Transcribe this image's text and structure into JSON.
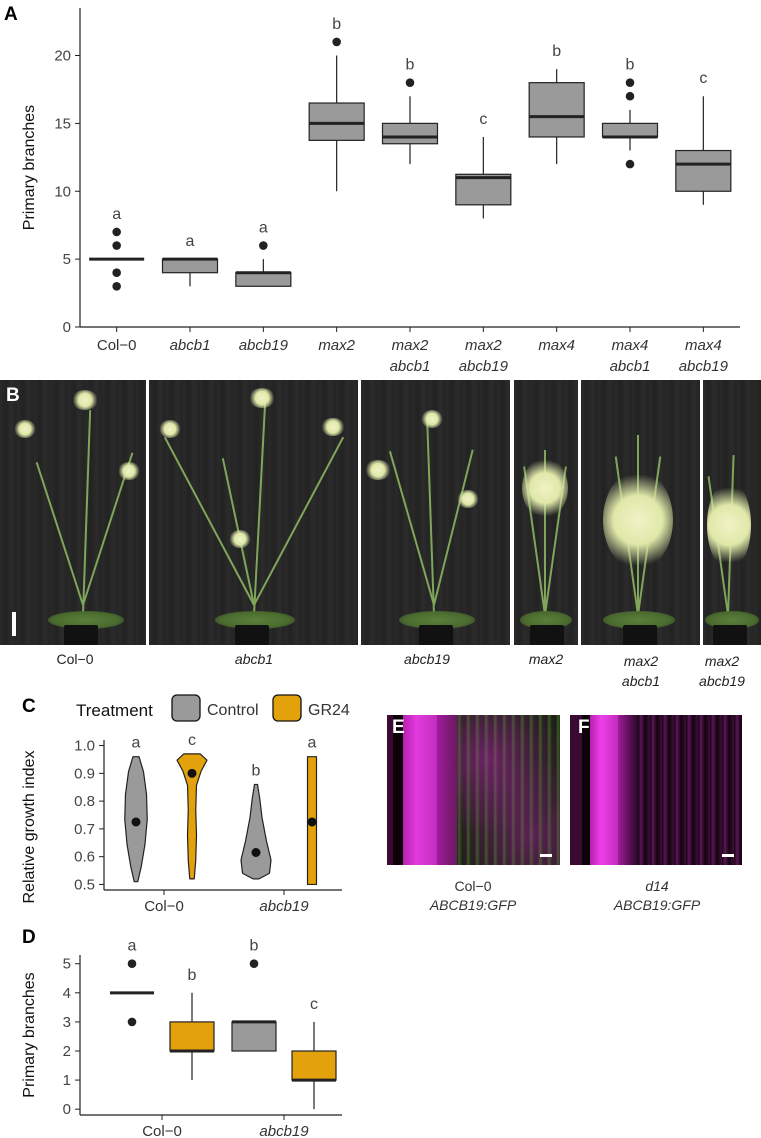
{
  "panels": {
    "A": "A",
    "B": "B",
    "C": "C",
    "D": "D",
    "E": "E",
    "F": "F"
  },
  "colors": {
    "box_gray": "#9a9a9a",
    "gr24_orange": "#e3a20c",
    "point": "#222222",
    "text": "#333333"
  },
  "chart_A": {
    "type": "box",
    "ylabel": "Primary branches",
    "ylim": [
      0,
      23.5
    ],
    "yticks": [
      0,
      5,
      10,
      15,
      20
    ],
    "groups": [
      {
        "label": [
          "Col−0"
        ],
        "italic": false,
        "q1": 5,
        "median": 5,
        "q3": 5,
        "wlo": 5,
        "whi": 5,
        "outliers": [
          3,
          4,
          6,
          7
        ],
        "letter": "a"
      },
      {
        "label": [
          "abcb1"
        ],
        "italic": true,
        "q1": 4,
        "median": 5,
        "q3": 5,
        "wlo": 3,
        "whi": 5,
        "outliers": [],
        "letter": "a"
      },
      {
        "label": [
          "abcb19"
        ],
        "italic": true,
        "q1": 3,
        "median": 4,
        "q3": 4,
        "wlo": 3,
        "whi": 5,
        "outliers": [
          6
        ],
        "letter": "a"
      },
      {
        "label": [
          "max2"
        ],
        "italic": true,
        "q1": 13.75,
        "median": 15,
        "q3": 16.5,
        "wlo": 10,
        "whi": 20,
        "outliers": [
          21
        ],
        "letter": "b"
      },
      {
        "label": [
          "max2",
          "abcb1"
        ],
        "italic": true,
        "q1": 13.5,
        "median": 14,
        "q3": 15,
        "wlo": 12,
        "whi": 17,
        "outliers": [
          18
        ],
        "letter": "b"
      },
      {
        "label": [
          "max2",
          "abcb19"
        ],
        "italic": true,
        "q1": 9,
        "median": 11,
        "q3": 11.25,
        "wlo": 8,
        "whi": 14,
        "outliers": [],
        "letter": "c"
      },
      {
        "label": [
          "max4"
        ],
        "italic": true,
        "q1": 14,
        "median": 15.5,
        "q3": 18,
        "wlo": 12,
        "whi": 19,
        "outliers": [],
        "letter": "b"
      },
      {
        "label": [
          "max4",
          "abcb1"
        ],
        "italic": true,
        "q1": 14,
        "median": 14,
        "q3": 15,
        "wlo": 13,
        "whi": 16,
        "outliers": [
          12,
          17,
          18
        ],
        "letter": "b"
      },
      {
        "label": [
          "max4",
          "abcb19"
        ],
        "italic": true,
        "q1": 10,
        "median": 12,
        "q3": 13,
        "wlo": 9,
        "whi": 17,
        "outliers": [],
        "letter": "c"
      }
    ]
  },
  "chart_C": {
    "type": "violin",
    "ylabel": "Relative growth index",
    "ylim": [
      0.48,
      1.02
    ],
    "yticks": [
      "0.5",
      "0.6",
      "0.7",
      "0.8",
      "0.9",
      "1.0"
    ],
    "legend_title": "Treatment",
    "legend": [
      {
        "name": "Control",
        "color": "#9a9a9a"
      },
      {
        "name": "GR24",
        "color": "#e3a20c"
      }
    ],
    "categories": [
      {
        "label": "Col−0",
        "italic": false
      },
      {
        "label": "abcb19",
        "italic": true
      }
    ],
    "series": [
      {
        "name": "Control",
        "values": [
          {
            "min": 0.51,
            "max": 0.96,
            "mean": 0.725,
            "letter": "a"
          },
          {
            "min": 0.52,
            "max": 0.86,
            "mean": 0.615,
            "letter": "b"
          }
        ]
      },
      {
        "name": "GR24",
        "values": [
          {
            "min": 0.52,
            "max": 0.97,
            "mean": 0.9,
            "letter": "c"
          },
          {
            "min": 0.5,
            "max": 0.96,
            "mean": 0.725,
            "letter": "a"
          }
        ]
      }
    ]
  },
  "chart_D": {
    "type": "box",
    "ylabel": "Primary branches",
    "ylim": [
      -0.2,
      5.3
    ],
    "yticks": [
      0,
      1,
      2,
      3,
      4,
      5
    ],
    "categories": [
      {
        "label": "Col−0",
        "italic": false
      },
      {
        "label": "abcb19",
        "italic": true
      }
    ],
    "series": [
      {
        "name": "Control",
        "values": [
          {
            "q1": 4,
            "median": 4,
            "q3": 4,
            "wlo": 4,
            "whi": 4,
            "outliers": [
              3,
              5
            ],
            "letter": "a"
          },
          {
            "q1": 2,
            "median": 3,
            "q3": 3,
            "wlo": 2,
            "whi": 3,
            "outliers": [
              5
            ],
            "letter": "b"
          }
        ]
      },
      {
        "name": "GR24",
        "values": [
          {
            "q1": 2,
            "median": 2,
            "q3": 3,
            "wlo": 1,
            "whi": 4,
            "outliers": [],
            "letter": "b"
          },
          {
            "q1": 1,
            "median": 1,
            "q3": 2,
            "wlo": 0,
            "whi": 3,
            "outliers": [],
            "letter": "c"
          }
        ]
      }
    ]
  },
  "photo_B": {
    "labels": [
      {
        "l1": "Col−0",
        "l2": "",
        "italic": false
      },
      {
        "l1": "abcb1",
        "l2": "",
        "italic": true
      },
      {
        "l1": "abcb19",
        "l2": "",
        "italic": true
      },
      {
        "l1": "max2",
        "l2": "",
        "italic": true
      },
      {
        "l1": "max2",
        "l2": "abcb1",
        "italic": true
      },
      {
        "l1": "max2",
        "l2": "abcb19",
        "italic": true
      }
    ]
  },
  "images_EF": {
    "E": {
      "l1": "Col−0",
      "l2": "ABCB19:GFP"
    },
    "F": {
      "l1": "d14",
      "l2": "ABCB19:GFP"
    }
  }
}
